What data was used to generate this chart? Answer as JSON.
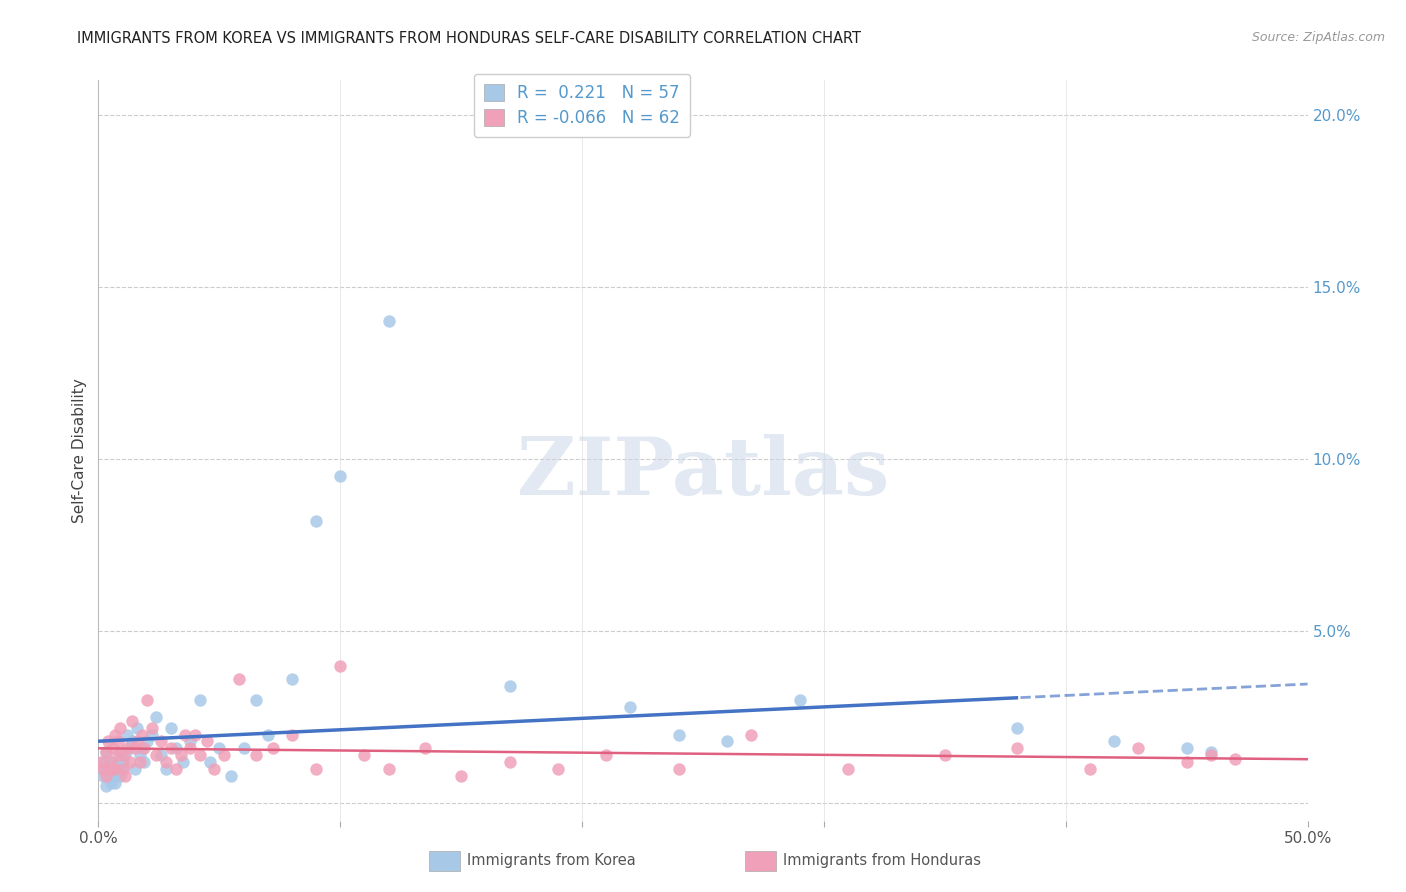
{
  "title": "IMMIGRANTS FROM KOREA VS IMMIGRANTS FROM HONDURAS SELF-CARE DISABILITY CORRELATION CHART",
  "source": "Source: ZipAtlas.com",
  "ylabel": "Self-Care Disability",
  "xlim": [
    0.0,
    0.5
  ],
  "ylim": [
    -0.005,
    0.21
  ],
  "yticks": [
    0.0,
    0.05,
    0.1,
    0.15,
    0.2
  ],
  "ytick_labels": [
    "",
    "5.0%",
    "10.0%",
    "15.0%",
    "20.0%"
  ],
  "korea_R": 0.221,
  "korea_N": 57,
  "honduras_R": -0.066,
  "honduras_N": 62,
  "korea_color": "#a8c8e8",
  "honduras_color": "#f0a0b8",
  "korea_line_color": "#4472c4",
  "honduras_line_color": "#e06080",
  "korea_x": [
    0.001,
    0.002,
    0.002,
    0.003,
    0.003,
    0.004,
    0.004,
    0.005,
    0.005,
    0.006,
    0.006,
    0.007,
    0.007,
    0.008,
    0.008,
    0.009,
    0.009,
    0.01,
    0.01,
    0.011,
    0.012,
    0.013,
    0.014,
    0.015,
    0.016,
    0.017,
    0.018,
    0.019,
    0.02,
    0.022,
    0.024,
    0.026,
    0.028,
    0.03,
    0.032,
    0.035,
    0.038,
    0.042,
    0.046,
    0.05,
    0.055,
    0.06,
    0.065,
    0.07,
    0.08,
    0.09,
    0.1,
    0.12,
    0.17,
    0.22,
    0.24,
    0.26,
    0.29,
    0.38,
    0.42,
    0.45,
    0.46
  ],
  "korea_y": [
    0.01,
    0.008,
    0.012,
    0.005,
    0.015,
    0.008,
    0.01,
    0.006,
    0.012,
    0.008,
    0.01,
    0.006,
    0.008,
    0.012,
    0.01,
    0.015,
    0.008,
    0.012,
    0.01,
    0.014,
    0.02,
    0.016,
    0.018,
    0.01,
    0.022,
    0.014,
    0.016,
    0.012,
    0.018,
    0.02,
    0.025,
    0.014,
    0.01,
    0.022,
    0.016,
    0.012,
    0.018,
    0.03,
    0.012,
    0.016,
    0.008,
    0.016,
    0.03,
    0.02,
    0.036,
    0.082,
    0.095,
    0.14,
    0.034,
    0.028,
    0.02,
    0.018,
    0.03,
    0.022,
    0.018,
    0.016,
    0.015
  ],
  "honduras_x": [
    0.001,
    0.002,
    0.003,
    0.003,
    0.004,
    0.005,
    0.005,
    0.006,
    0.007,
    0.007,
    0.008,
    0.008,
    0.009,
    0.01,
    0.01,
    0.011,
    0.012,
    0.013,
    0.014,
    0.015,
    0.016,
    0.017,
    0.018,
    0.019,
    0.02,
    0.022,
    0.024,
    0.026,
    0.028,
    0.03,
    0.032,
    0.034,
    0.036,
    0.038,
    0.04,
    0.042,
    0.045,
    0.048,
    0.052,
    0.058,
    0.065,
    0.072,
    0.08,
    0.09,
    0.1,
    0.11,
    0.12,
    0.135,
    0.15,
    0.17,
    0.19,
    0.21,
    0.24,
    0.27,
    0.31,
    0.35,
    0.38,
    0.41,
    0.43,
    0.45,
    0.46,
    0.47
  ],
  "honduras_y": [
    0.012,
    0.01,
    0.015,
    0.008,
    0.018,
    0.01,
    0.012,
    0.016,
    0.02,
    0.01,
    0.014,
    0.018,
    0.022,
    0.01,
    0.014,
    0.008,
    0.016,
    0.012,
    0.024,
    0.016,
    0.018,
    0.012,
    0.02,
    0.016,
    0.03,
    0.022,
    0.014,
    0.018,
    0.012,
    0.016,
    0.01,
    0.014,
    0.02,
    0.016,
    0.02,
    0.014,
    0.018,
    0.01,
    0.014,
    0.036,
    0.014,
    0.016,
    0.02,
    0.01,
    0.04,
    0.014,
    0.01,
    0.016,
    0.008,
    0.012,
    0.01,
    0.014,
    0.01,
    0.02,
    0.01,
    0.014,
    0.016,
    0.01,
    0.016,
    0.012,
    0.014,
    0.013
  ]
}
